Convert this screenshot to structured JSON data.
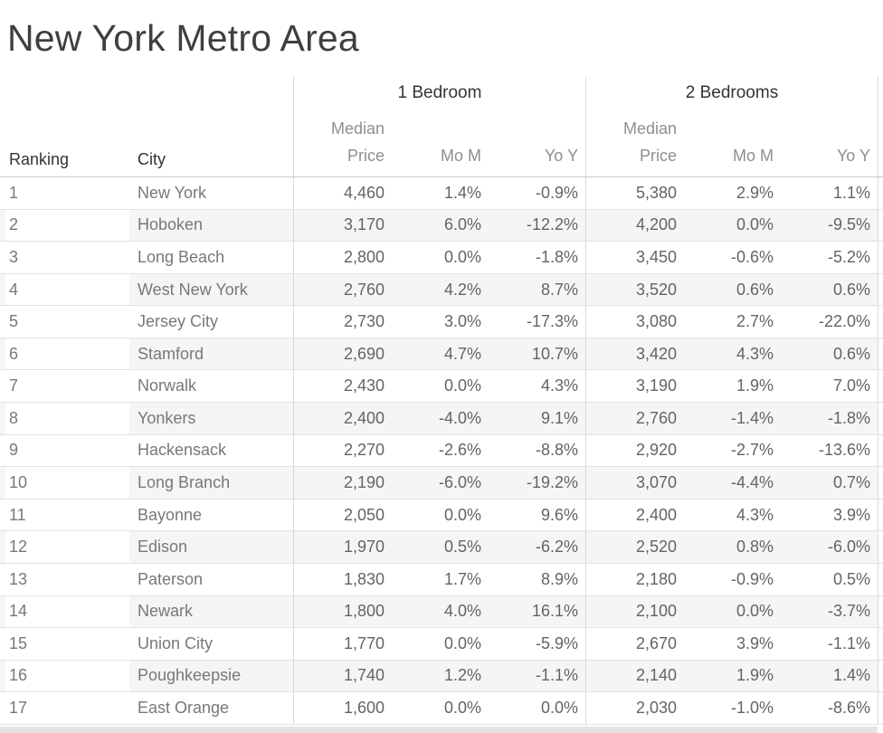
{
  "title": "New York Metro Area",
  "header": {
    "ranking_label": "Ranking",
    "city_label": "City",
    "group1_label": "1 Bedroom",
    "group2_label": "2 Bedrooms",
    "median_label": "Median",
    "price_label": "Price",
    "mom_label": "Mo M",
    "yoy_label": "Yo Y"
  },
  "colors": {
    "title_text": "#3f3f3f",
    "header_dark_text": "#333333",
    "header_light_text": "#8e8e8e",
    "cell_text": "#646464",
    "city_text": "#787878",
    "row_band": "#f5f5f5",
    "row_border": "#e2e2e2",
    "header_border": "#c9c9c9",
    "column_border": "#d9d9d9",
    "scrollbar": "#e3e3e3"
  },
  "chart_data": {
    "type": "table",
    "title": "New York Metro Area",
    "column_groups": [
      "1 Bedroom",
      "2 Bedrooms"
    ],
    "columns": [
      "Ranking",
      "City",
      "1 Bedroom Median Price",
      "1 Bedroom Mo M",
      "1 Bedroom Yo Y",
      "2 Bedrooms Median Price",
      "2 Bedrooms Mo M",
      "2 Bedrooms Yo Y"
    ],
    "rows": [
      {
        "ranking": "1",
        "city": "New York",
        "br1": {
          "price": "4,460",
          "mom": "1.4%",
          "yoy": "-0.9%"
        },
        "br2": {
          "price": "5,380",
          "mom": "2.9%",
          "yoy": "1.1%"
        }
      },
      {
        "ranking": "2",
        "city": "Hoboken",
        "br1": {
          "price": "3,170",
          "mom": "6.0%",
          "yoy": "-12.2%"
        },
        "br2": {
          "price": "4,200",
          "mom": "0.0%",
          "yoy": "-9.5%"
        }
      },
      {
        "ranking": "3",
        "city": "Long Beach",
        "br1": {
          "price": "2,800",
          "mom": "0.0%",
          "yoy": "-1.8%"
        },
        "br2": {
          "price": "3,450",
          "mom": "-0.6%",
          "yoy": "-5.2%"
        }
      },
      {
        "ranking": "4",
        "city": "West New York",
        "br1": {
          "price": "2,760",
          "mom": "4.2%",
          "yoy": "8.7%"
        },
        "br2": {
          "price": "3,520",
          "mom": "0.6%",
          "yoy": "0.6%"
        }
      },
      {
        "ranking": "5",
        "city": "Jersey City",
        "br1": {
          "price": "2,730",
          "mom": "3.0%",
          "yoy": "-17.3%"
        },
        "br2": {
          "price": "3,080",
          "mom": "2.7%",
          "yoy": "-22.0%"
        }
      },
      {
        "ranking": "6",
        "city": "Stamford",
        "br1": {
          "price": "2,690",
          "mom": "4.7%",
          "yoy": "10.7%"
        },
        "br2": {
          "price": "3,420",
          "mom": "4.3%",
          "yoy": "0.6%"
        }
      },
      {
        "ranking": "7",
        "city": "Norwalk",
        "br1": {
          "price": "2,430",
          "mom": "0.0%",
          "yoy": "4.3%"
        },
        "br2": {
          "price": "3,190",
          "mom": "1.9%",
          "yoy": "7.0%"
        }
      },
      {
        "ranking": "8",
        "city": "Yonkers",
        "br1": {
          "price": "2,400",
          "mom": "-4.0%",
          "yoy": "9.1%"
        },
        "br2": {
          "price": "2,760",
          "mom": "-1.4%",
          "yoy": "-1.8%"
        }
      },
      {
        "ranking": "9",
        "city": "Hackensack",
        "br1": {
          "price": "2,270",
          "mom": "-2.6%",
          "yoy": "-8.8%"
        },
        "br2": {
          "price": "2,920",
          "mom": "-2.7%",
          "yoy": "-13.6%"
        }
      },
      {
        "ranking": "10",
        "city": "Long Branch",
        "br1": {
          "price": "2,190",
          "mom": "-6.0%",
          "yoy": "-19.2%"
        },
        "br2": {
          "price": "3,070",
          "mom": "-4.4%",
          "yoy": "0.7%"
        }
      },
      {
        "ranking": "11",
        "city": "Bayonne",
        "br1": {
          "price": "2,050",
          "mom": "0.0%",
          "yoy": "9.6%"
        },
        "br2": {
          "price": "2,400",
          "mom": "4.3%",
          "yoy": "3.9%"
        }
      },
      {
        "ranking": "12",
        "city": "Edison",
        "br1": {
          "price": "1,970",
          "mom": "0.5%",
          "yoy": "-6.2%"
        },
        "br2": {
          "price": "2,520",
          "mom": "0.8%",
          "yoy": "-6.0%"
        }
      },
      {
        "ranking": "13",
        "city": "Paterson",
        "br1": {
          "price": "1,830",
          "mom": "1.7%",
          "yoy": "8.9%"
        },
        "br2": {
          "price": "2,180",
          "mom": "-0.9%",
          "yoy": "0.5%"
        }
      },
      {
        "ranking": "14",
        "city": "Newark",
        "br1": {
          "price": "1,800",
          "mom": "4.0%",
          "yoy": "16.1%"
        },
        "br2": {
          "price": "2,100",
          "mom": "0.0%",
          "yoy": "-3.7%"
        }
      },
      {
        "ranking": "15",
        "city": "Union City",
        "br1": {
          "price": "1,770",
          "mom": "0.0%",
          "yoy": "-5.9%"
        },
        "br2": {
          "price": "2,670",
          "mom": "3.9%",
          "yoy": "-1.1%"
        }
      },
      {
        "ranking": "16",
        "city": "Poughkeepsie",
        "br1": {
          "price": "1,740",
          "mom": "1.2%",
          "yoy": "-1.1%"
        },
        "br2": {
          "price": "2,140",
          "mom": "1.9%",
          "yoy": "1.4%"
        }
      },
      {
        "ranking": "17",
        "city": "East Orange",
        "br1": {
          "price": "1,600",
          "mom": "0.0%",
          "yoy": "0.0%"
        },
        "br2": {
          "price": "2,030",
          "mom": "-1.0%",
          "yoy": "-8.6%"
        }
      }
    ]
  }
}
